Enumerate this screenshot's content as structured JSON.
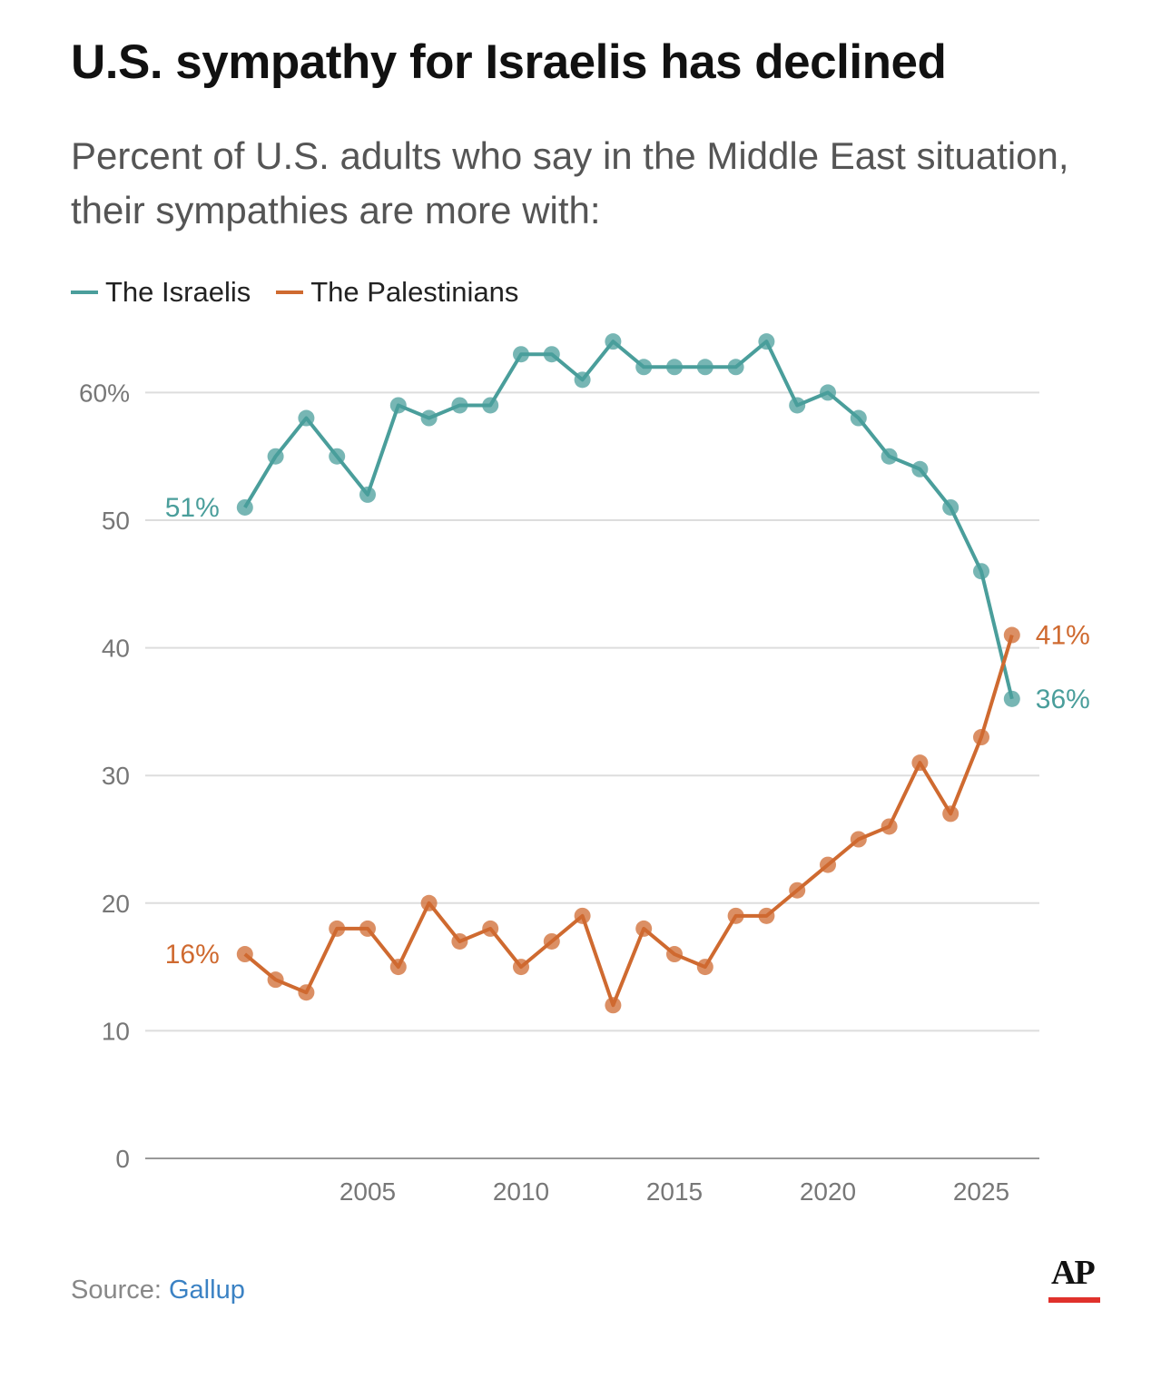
{
  "chart_data": {
    "type": "line",
    "title": "U.S. sympathy for Israelis has declined",
    "subtitle": "Percent of U.S. adults who say in the Middle East situation, their sympathies are more with:",
    "x": [
      2001,
      2002,
      2003,
      2004,
      2005,
      2006,
      2007,
      2008,
      2009,
      2010,
      2011,
      2012,
      2013,
      2014,
      2015,
      2016,
      2017,
      2018,
      2019,
      2020,
      2021,
      2022,
      2023,
      2024,
      2025,
      2026
    ],
    "series": [
      {
        "name": "The Israelis",
        "color": "#4a9e9b",
        "values": [
          51,
          55,
          58,
          55,
          52,
          59,
          58,
          59,
          59,
          63,
          63,
          61,
          64,
          62,
          62,
          62,
          62,
          64,
          59,
          60,
          58,
          55,
          54,
          51,
          46,
          36
        ],
        "start_label": "51%",
        "end_label": "36%"
      },
      {
        "name": "The Palestinians",
        "color": "#cf6a30",
        "values": [
          16,
          14,
          13,
          18,
          18,
          15,
          20,
          17,
          18,
          15,
          17,
          19,
          12,
          18,
          16,
          15,
          19,
          19,
          21,
          23,
          25,
          26,
          31,
          27,
          33,
          41
        ],
        "start_label": "16%",
        "end_label": "41%"
      }
    ],
    "ylim": [
      0,
      65
    ],
    "yticks": [
      0,
      10,
      20,
      30,
      40,
      50,
      60
    ],
    "ytick_labels": [
      "0",
      "10",
      "20",
      "30",
      "40",
      "50",
      "60%"
    ],
    "xticks": [
      2005,
      2010,
      2015,
      2020,
      2025
    ],
    "xtick_labels": [
      "2005",
      "2010",
      "2015",
      "2020",
      "2025"
    ],
    "xlim": [
      1997.7,
      2026.9
    ],
    "grid": true,
    "legend_placement": "top-left",
    "xlabel": "",
    "ylabel": ""
  },
  "source": {
    "prefix": "Source: ",
    "name": "Gallup"
  },
  "logo": "AP"
}
